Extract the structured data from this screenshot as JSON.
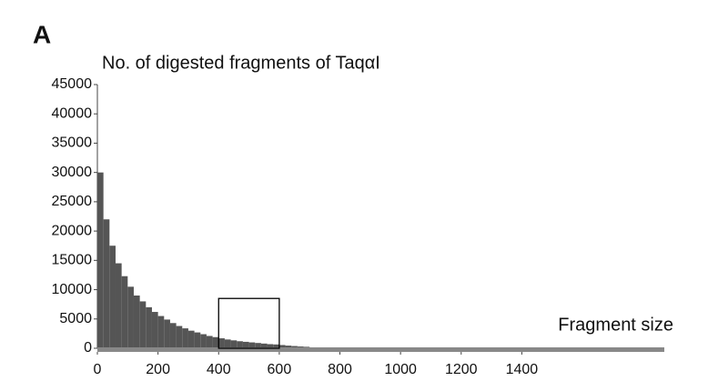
{
  "chart_data": {
    "type": "histogram",
    "panel_label": "A",
    "title": "No. of digested fragments of TaqαI",
    "x_label": "Fragment size",
    "bins": [
      0,
      20,
      40,
      60,
      80,
      100,
      120,
      140,
      160,
      180,
      200,
      220,
      240,
      260,
      280,
      300,
      320,
      340,
      360,
      380,
      400,
      420,
      440,
      460,
      480,
      500,
      520,
      540,
      560,
      580,
      600,
      620,
      640,
      660,
      680,
      700
    ],
    "values": [
      30000,
      22000,
      17500,
      14500,
      12300,
      10500,
      9000,
      8000,
      7000,
      6200,
      5500,
      4900,
      4300,
      3800,
      3400,
      3000,
      2700,
      2400,
      2100,
      1900,
      1700,
      1500,
      1350,
      1200,
      1100,
      1000,
      900,
      800,
      700,
      650,
      550,
      450,
      380,
      300,
      250
    ],
    "color": "#555555",
    "xlim": [
      0,
      1870
    ],
    "ylim": [
      0,
      45000
    ],
    "xticks": [
      0,
      200,
      400,
      600,
      800,
      1000,
      1200,
      1400
    ],
    "yticks": [
      0,
      5000,
      10000,
      15000,
      20000,
      25000,
      30000,
      35000,
      40000,
      45000
    ],
    "highlight": {
      "xlim": [
        400,
        600
      ],
      "ylim": [
        0,
        8500
      ]
    }
  }
}
